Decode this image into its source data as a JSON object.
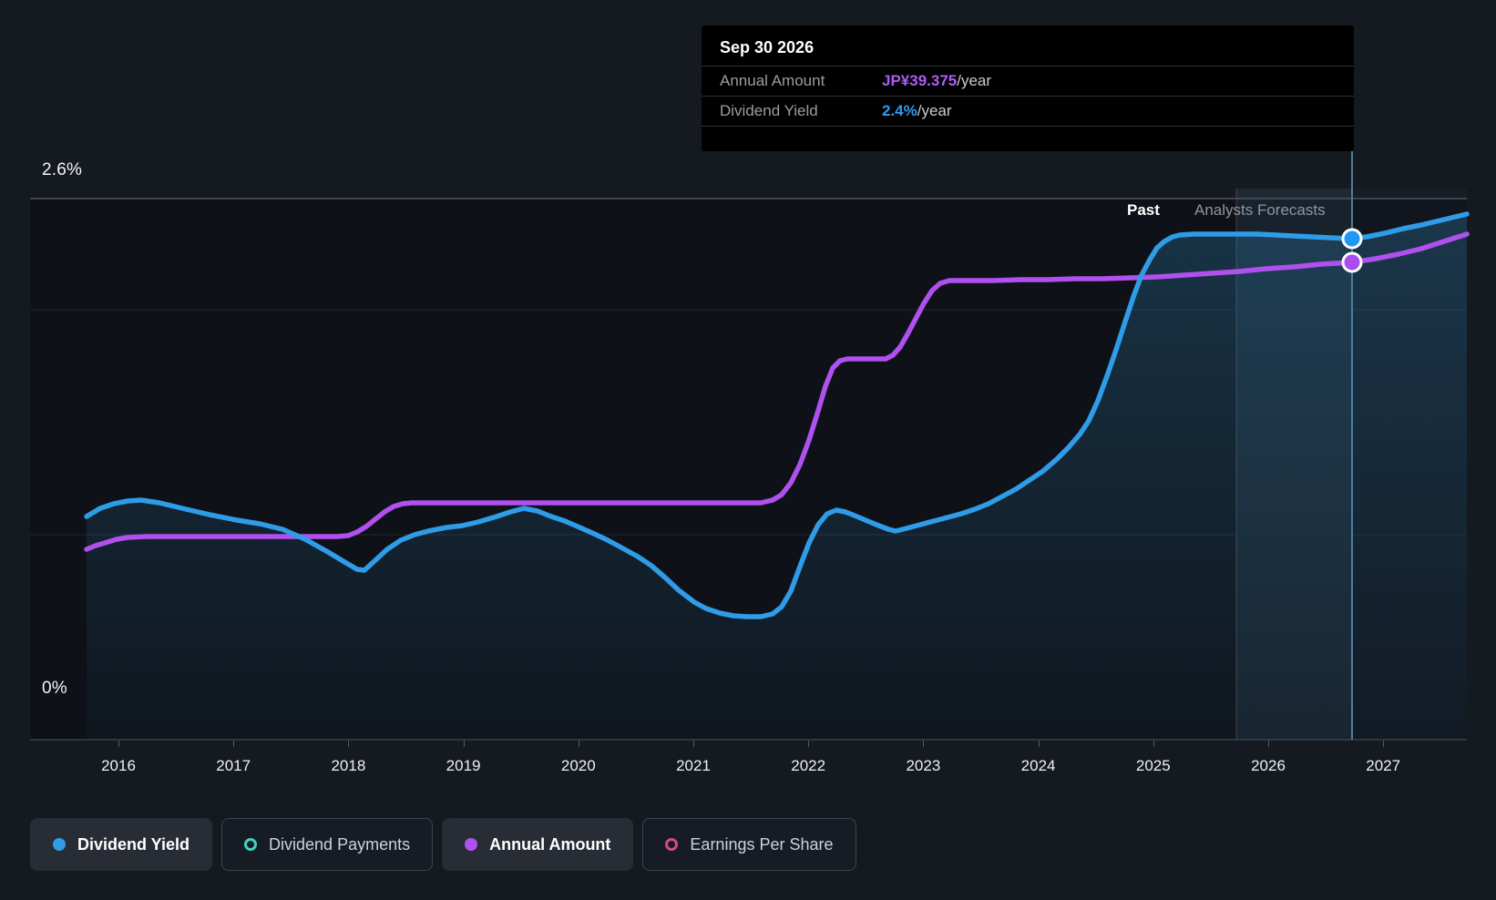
{
  "tooltip": {
    "date": "Sep 30 2026",
    "rows": [
      {
        "label": "Annual Amount",
        "value": "JP¥39.375",
        "suffix": "/year",
        "color": "#ad5cf2"
      },
      {
        "label": "Dividend Yield",
        "value": "2.4%",
        "suffix": "/year",
        "color": "#2d9cf4"
      }
    ]
  },
  "y_axis": {
    "top_label": "2.6%",
    "bottom_label": "0%"
  },
  "x_axis": {
    "years": [
      "2016",
      "2017",
      "2018",
      "2019",
      "2020",
      "2021",
      "2022",
      "2023",
      "2024",
      "2025",
      "2026",
      "2027"
    ]
  },
  "annotations": {
    "past": "Past",
    "forecast": "Analysts Forecasts"
  },
  "legend": [
    {
      "label": "Dividend Yield",
      "color": "#2f9ce8",
      "style": "solid",
      "selected": true
    },
    {
      "label": "Dividend Payments",
      "color": "#41d0c0",
      "style": "ring",
      "selected": false
    },
    {
      "label": "Annual Amount",
      "color": "#b050ee",
      "style": "solid",
      "selected": true
    },
    {
      "label": "Earnings Per Share",
      "color": "#d44b82",
      "style": "ring",
      "selected": false
    }
  ],
  "colors": {
    "dividend_yield_line": "#2f9ce8",
    "annual_amount_line": "#b050ee",
    "page_background": "#151a21",
    "plot_background": "#0e1218",
    "hover_line": "#4e7e9c",
    "tooltip_background": "#000000"
  },
  "chart_data": {
    "type": "line",
    "title": "Dividend yield history and analysts forecasts",
    "x_range": [
      2015.7,
      2027.8
    ],
    "grid": true,
    "legend_position": "bottom",
    "forecast_divider_x": 2025.72,
    "hover_point_x": 2026.75,
    "hover_point_date": "Sep 30 2026",
    "series": [
      {
        "name": "Dividend Yield",
        "unit": "%",
        "axis_range": [
          0,
          2.6
        ],
        "style": "line-with-area",
        "color": "#2f9ce8",
        "x": [
          2015.7,
          2016.2,
          2016.8,
          2017.4,
          2018.1,
          2018.7,
          2019.0,
          2019.5,
          2020.0,
          2020.5,
          2021.0,
          2021.5,
          2021.8,
          2022.2,
          2022.8,
          2023.2,
          2023.7,
          2024.2,
          2024.5,
          2024.8,
          2025.1,
          2025.5,
          2026.1,
          2026.75,
          2027.3,
          2027.7
        ],
        "y": [
          1.07,
          1.15,
          1.08,
          1.01,
          0.81,
          1.01,
          1.03,
          1.11,
          1.02,
          0.88,
          0.67,
          0.59,
          0.61,
          1.1,
          1.0,
          1.07,
          1.17,
          1.34,
          1.63,
          2.14,
          2.39,
          2.43,
          2.42,
          2.4,
          2.47,
          2.53
        ],
        "hover_value": "2.4%/year"
      },
      {
        "name": "Annual Amount",
        "unit": "JP¥/year",
        "style": "line",
        "color": "#b050ee",
        "values_estimated_from_pixels": true,
        "x": [
          2015.7,
          2016.0,
          2018.2,
          2018.7,
          2021.8,
          2022.2,
          2022.75,
          2023.2,
          2025.5,
          2026.75,
          2027.7
        ],
        "y": [
          15.7,
          16.8,
          16.8,
          19.5,
          19.5,
          31.4,
          31.4,
          37.8,
          38.0,
          39.375,
          41.7
        ],
        "hover_value": "JP¥39.375/year"
      }
    ],
    "annotations": [
      "Past",
      "Analysts Forecasts"
    ],
    "y_tick_labels_shown": [
      "2.6%",
      "0%"
    ]
  }
}
